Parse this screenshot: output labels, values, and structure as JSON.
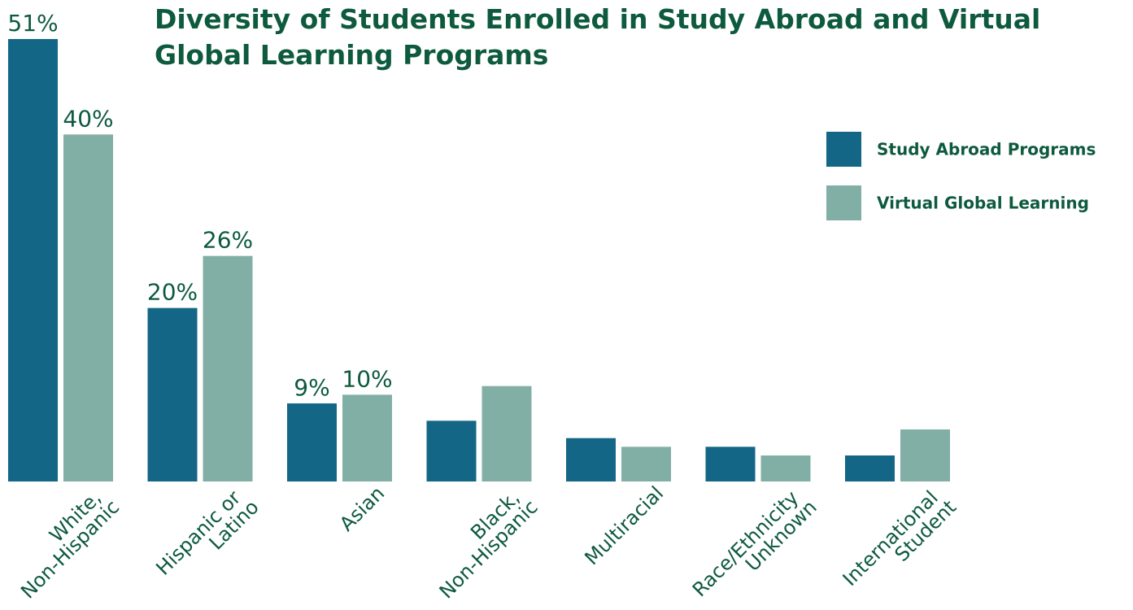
{
  "chart_data": {
    "type": "bar",
    "title": "Diversity of Students Enrolled in Study Abroad and Virtual Global Learning Programs",
    "categories": [
      "White, Non-Hispanic",
      "Hispanic or Latino",
      "Asian",
      "Black, Non-Hispanic",
      "Multiracial",
      "Race/Ethnicity Unknown",
      "International Student"
    ],
    "series": [
      {
        "name": "Study Abroad Programs",
        "color": "#136685",
        "values": [
          51,
          20,
          9,
          7,
          5,
          4,
          3
        ],
        "value_labels": [
          "51%",
          "20%",
          "9%",
          null,
          null,
          null,
          null
        ]
      },
      {
        "name": "Virtual Global Learning",
        "color": "#82afa5",
        "values": [
          40,
          26,
          10,
          11,
          4,
          3,
          6
        ],
        "value_labels": [
          "40%",
          "26%",
          "10%",
          null,
          null,
          null,
          null
        ]
      }
    ],
    "ylim": [
      0,
      51
    ],
    "grid": false,
    "legend": "upper right"
  }
}
